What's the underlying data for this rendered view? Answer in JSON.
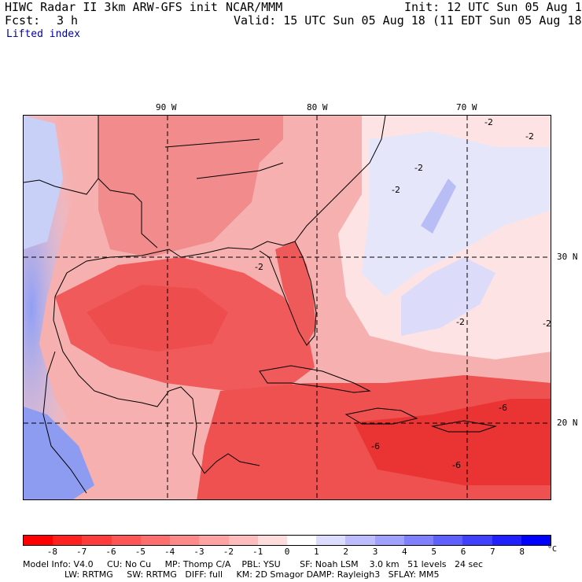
{
  "header": {
    "title_left": "HIWC Radar II 3km ARW-GFS init",
    "title_mid": "NCAR/MMM",
    "init": "Init: 12 UTC Sun 05 Aug 18",
    "fcst_label": "Fcst:",
    "fcst_value": "3 h",
    "valid": "Valid: 15 UTC Sun 05 Aug 18 (11 EDT Sun 05 Aug 18)",
    "field": "Lifted index"
  },
  "axes": {
    "lon_labels": [
      "90 W",
      "80 W",
      "70 W"
    ],
    "lat_labels": [
      "30 N",
      "20 N"
    ]
  },
  "contour_labels": [
    "-2",
    "-2",
    "-2",
    "-2",
    "-2",
    "-2",
    "-2",
    "-6",
    "-6",
    "-6"
  ],
  "colorbar": {
    "ticks": [
      "-8",
      "-7",
      "-6",
      "-5",
      "-4",
      "-3",
      "-2",
      "-1",
      "0",
      "1",
      "2",
      "3",
      "4",
      "5",
      "6",
      "7",
      "8"
    ],
    "unit": "°C",
    "colors": [
      "#ff0000",
      "#ff2020",
      "#ff3c3c",
      "#ff5555",
      "#ff6e6e",
      "#ff8888",
      "#ffa2a2",
      "#ffbcbc",
      "#ffdcdc",
      "#ffffff",
      "#dcdcff",
      "#bcbcff",
      "#a0a0ff",
      "#8080ff",
      "#6060ff",
      "#4040ff",
      "#2020ff",
      "#0000ff"
    ]
  },
  "footer": {
    "line1": "Model Info: V4.0     CU: No Cu     MP: Thomp C/A    PBL: YSU       SF: Noah LSM    3.0 km   51 levels   24 sec",
    "line2": "LW: RRTMG     SW: RRTMG   DIFF: full     KM: 2D Smagor DAMP: Rayleigh3   SFLAY: MM5"
  }
}
